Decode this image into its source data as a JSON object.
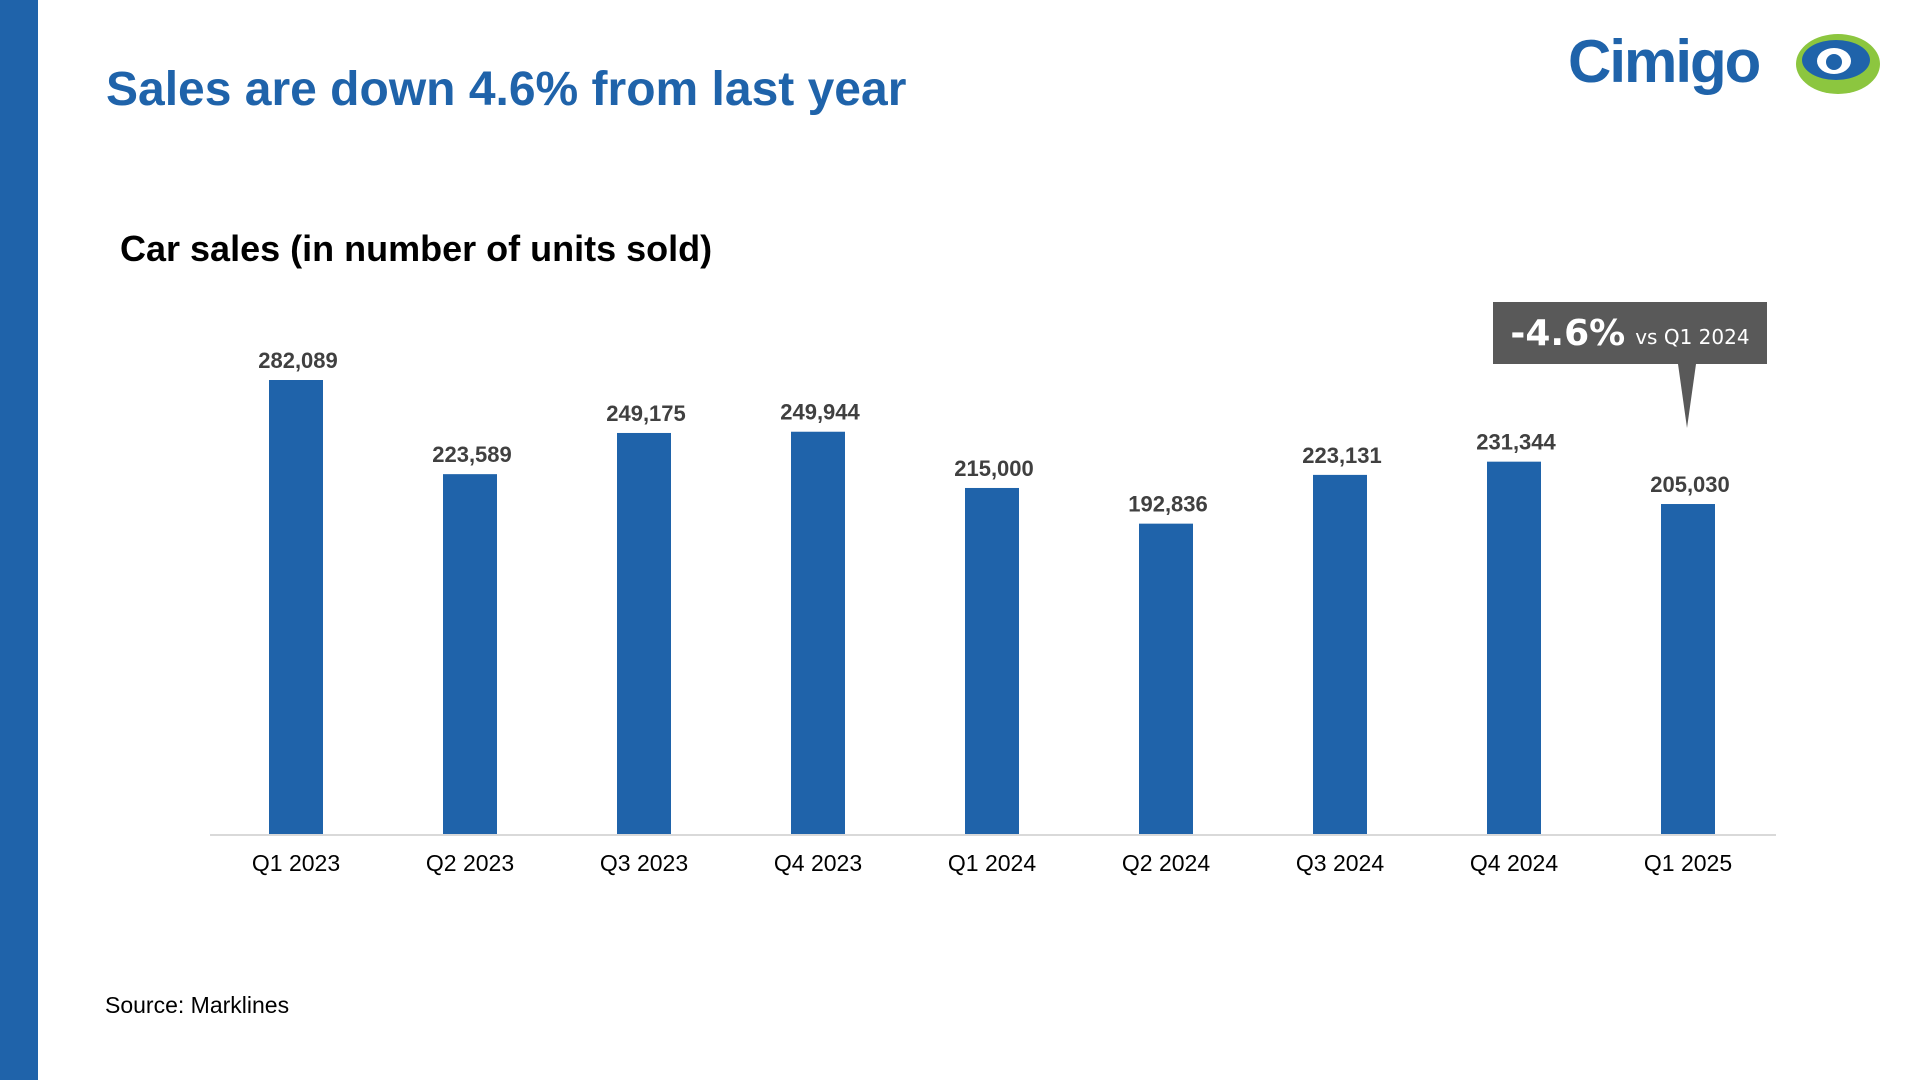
{
  "slide": {
    "title": "Sales are down 4.6% from last year",
    "source": "Source: Marklines"
  },
  "logo": {
    "text": "Cimigo",
    "colors": {
      "text": "#1f63aa",
      "ring": "#8cc63f",
      "eye": "#1f63aa"
    }
  },
  "callout": {
    "value": "-4.6%",
    "comparison": "vs Q1 2024",
    "target_category": "Q1 2025"
  },
  "colors": {
    "accent": "#1f63aa",
    "bar": "#1f63aa",
    "callout_bg": "#595959",
    "axis_line": "#d9d9d9",
    "data_label": "#404040"
  },
  "chart_data": {
    "type": "bar",
    "title": "Car sales (in number of units sold)",
    "categories": [
      "Q1 2023",
      "Q2 2023",
      "Q3 2023",
      "Q4 2023",
      "Q1 2024",
      "Q2 2024",
      "Q3 2024",
      "Q4 2024",
      "Q1 2025"
    ],
    "values": [
      282089,
      223589,
      249175,
      249944,
      215000,
      192836,
      223131,
      231344,
      205030
    ],
    "data_labels": [
      "282,089",
      "223,589",
      "249,175",
      "249,944",
      "215,000",
      "192,836",
      "223,131",
      "231,344",
      "205,030"
    ],
    "xlabel": "",
    "ylabel": "",
    "ylim": [
      0,
      290000
    ],
    "grid": false,
    "legend": "none"
  }
}
